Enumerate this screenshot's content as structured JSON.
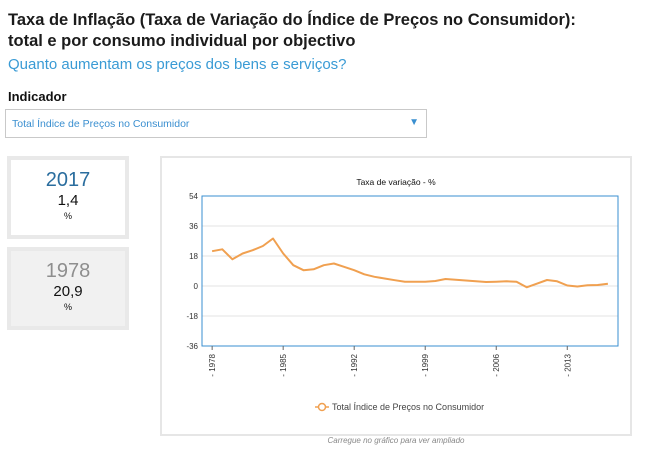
{
  "header": {
    "title_line1": "Taxa de Inflação (Taxa de Variação do Índice de Preços no Consumidor):",
    "title_line2": "total e por consumo individual por objectivo",
    "subtitle": "Quanto aumentam os preços dos bens e serviços?"
  },
  "indicator": {
    "label": "Indicador",
    "selected": "Total Índice de Preços no Consumidor",
    "arrow": "▼"
  },
  "cards": [
    {
      "year": "2017",
      "value": "1,4",
      "unit": "%"
    },
    {
      "year": "1978",
      "value": "20,9",
      "unit": "%"
    }
  ],
  "caption": "Carregue no gráfico para ver ampliado",
  "colors": {
    "series": "#f0a050",
    "plot_border": "#3a8fd0",
    "subtitle": "#3a9bd5"
  },
  "chart_data": {
    "type": "line",
    "title": "Taxa de variação - %",
    "xlabel": "",
    "ylabel": "",
    "ylim": [
      -36,
      54
    ],
    "yticks": [
      "54",
      "36",
      "18",
      "0",
      "-18",
      "-36"
    ],
    "yticks_values": [
      54,
      36,
      18,
      0,
      -18,
      -36
    ],
    "xlim": [
      1977,
      2018
    ],
    "xticks": [
      "1978",
      "1985",
      "1992",
      "1999",
      "2006",
      "2013"
    ],
    "xticks_values": [
      1978,
      1985,
      1992,
      1999,
      2006,
      2013
    ],
    "legend": "bottom",
    "series": [
      {
        "name": "Total Índice de Preços no Consumidor",
        "x": [
          1978,
          1979,
          1980,
          1981,
          1982,
          1983,
          1984,
          1985,
          1986,
          1987,
          1988,
          1989,
          1990,
          1991,
          1992,
          1993,
          1994,
          1995,
          1996,
          1997,
          1998,
          1999,
          2000,
          2001,
          2002,
          2003,
          2004,
          2005,
          2006,
          2007,
          2008,
          2009,
          2010,
          2011,
          2012,
          2013,
          2014,
          2015,
          2016,
          2017
        ],
        "values": [
          20.9,
          22.0,
          16.0,
          19.5,
          21.5,
          24.0,
          28.5,
          19.5,
          12.5,
          9.5,
          10.0,
          12.5,
          13.5,
          11.5,
          9.5,
          7.0,
          5.5,
          4.5,
          3.5,
          2.5,
          2.5,
          2.5,
          3.0,
          4.2,
          3.8,
          3.3,
          2.8,
          2.4,
          2.6,
          2.8,
          2.6,
          -0.8,
          1.4,
          3.6,
          2.8,
          0.3,
          -0.3,
          0.5,
          0.6,
          1.4
        ]
      }
    ]
  }
}
